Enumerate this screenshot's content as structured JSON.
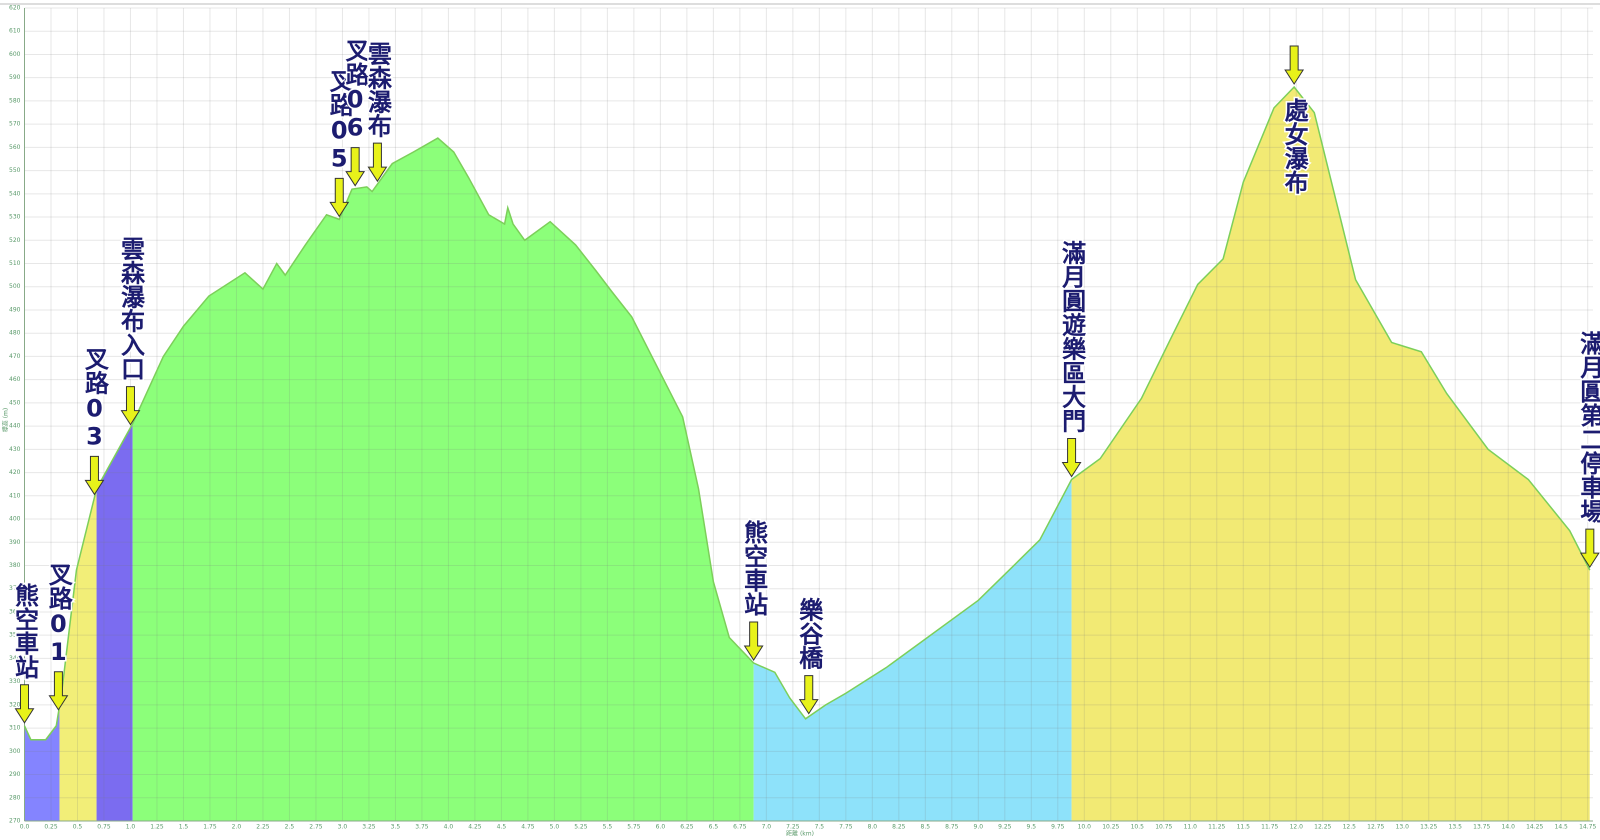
{
  "chart_data": {
    "type": "area",
    "xlabel": "距離 (km)",
    "ylabel": "標高 (m)",
    "x": [
      0,
      0.06,
      0.2,
      0.3,
      0.35,
      0.49,
      0.68,
      1.02,
      1.31,
      1.5,
      1.74,
      2.08,
      2.25,
      2.38,
      2.46,
      2.65,
      2.85,
      2.97,
      3.09,
      3.23,
      3.28,
      3.47,
      3.67,
      3.9,
      4.05,
      4.19,
      4.38,
      4.53,
      4.56,
      4.61,
      4.72,
      4.96,
      5.2,
      5.39,
      5.54,
      5.73,
      6.02,
      6.21,
      6.36,
      6.5,
      6.65,
      6.88,
      7.08,
      7.22,
      7.37,
      7.56,
      7.75,
      8.13,
      8.52,
      9.0,
      9.38,
      9.58,
      9.88,
      10.15,
      10.54,
      10.83,
      11.07,
      11.31,
      11.5,
      11.79,
      11.98,
      12.17,
      12.56,
      12.9,
      13.18,
      13.42,
      13.81,
      14.19,
      14.58,
      14.77
    ],
    "values": [
      311,
      305,
      305,
      311,
      325,
      378,
      413,
      441,
      470,
      483,
      496,
      506,
      499,
      510,
      505,
      518,
      531,
      529,
      542,
      543,
      541,
      553,
      558,
      564,
      558,
      547,
      531,
      527,
      534,
      527,
      520,
      528,
      518,
      507,
      498,
      487,
      461,
      444,
      413,
      373,
      349,
      338,
      334,
      323,
      314,
      320,
      325,
      336,
      349,
      365,
      382,
      391,
      417,
      426,
      452,
      479,
      501,
      512,
      545,
      577,
      586,
      575,
      503,
      476,
      472,
      454,
      430,
      417,
      395,
      378
    ],
    "color": "#7ccf5a",
    "segments": [
      {
        "start": 0,
        "end": 0.33,
        "color": "#8484ff"
      },
      {
        "start": 0.33,
        "end": 0.68,
        "color": "#f2ee78"
      },
      {
        "start": 0.68,
        "end": 1.02,
        "color": "#7b6cf0"
      },
      {
        "start": 1.02,
        "end": 6.88,
        "color": "#8cff7a"
      },
      {
        "start": 6.88,
        "end": 9.88,
        "color": "#8ee2fa"
      },
      {
        "start": 9.88,
        "end": 14.77,
        "color": "#f2ea74"
      }
    ],
    "annotations": [
      {
        "text": "熊空車站",
        "x": 0
      },
      {
        "text": "叉路01",
        "x": 0.32
      },
      {
        "text": "叉路03",
        "x": 0.66
      },
      {
        "text": "雲森瀑布入口",
        "x": 1.0
      },
      {
        "text": "叉路05",
        "x": 2.97
      },
      {
        "text": "叉路06",
        "x": 3.12
      },
      {
        "text": "雲森瀑布",
        "x": 3.33
      },
      {
        "text": "熊空車站",
        "x": 6.88
      },
      {
        "text": "樂谷橋",
        "x": 7.4
      },
      {
        "text": "滿月圓遊樂區大門",
        "x": 9.88
      },
      {
        "text": "處女瀑布",
        "x": 11.98
      },
      {
        "text": "滿月圓第二停車場",
        "x": 14.77
      }
    ],
    "xlim": [
      0,
      14.8
    ],
    "ylim": [
      270,
      620
    ],
    "grid": true,
    "xticks": [
      {
        "value": 0,
        "label": "0.0"
      },
      0.25,
      0.5,
      0.75,
      {
        "value": 1,
        "label": "1.0"
      },
      1.25,
      1.5,
      1.75,
      {
        "value": 2,
        "label": "2.0"
      },
      2.25,
      2.5,
      2.75,
      {
        "value": 3,
        "label": "3.0"
      },
      3.25,
      3.5,
      3.75,
      {
        "value": 4,
        "label": "4.0"
      },
      4.25,
      4.5,
      4.75,
      {
        "value": 5,
        "label": "5.0"
      },
      5.25,
      5.5,
      5.75,
      {
        "value": 6,
        "label": "6.0"
      },
      6.25,
      6.5,
      6.75,
      {
        "value": 7,
        "label": "7.0"
      },
      7.25,
      7.5,
      7.75,
      {
        "value": 8,
        "label": "8.0"
      },
      8.25,
      8.5,
      8.75,
      {
        "value": 9,
        "label": "9.0"
      },
      9.25,
      9.5,
      9.75,
      {
        "value": 10,
        "label": "10.0"
      },
      10.25,
      10.5,
      10.75,
      {
        "value": 11,
        "label": "11.0"
      },
      11.25,
      11.5,
      11.75,
      {
        "value": 12,
        "label": "12.0"
      },
      12.25,
      12.5,
      12.75,
      {
        "value": 13,
        "label": "13.0"
      },
      13.25,
      13.5,
      13.75,
      {
        "value": 14,
        "label": "14.0"
      },
      14.25,
      14.5,
      14.75
    ],
    "yticks": [
      270,
      280,
      290,
      300,
      310,
      320,
      330,
      340,
      350,
      360,
      370,
      380,
      390,
      400,
      410,
      420,
      430,
      440,
      450,
      460,
      470,
      480,
      490,
      500,
      510,
      520,
      530,
      540,
      550,
      560,
      570,
      580,
      590,
      600,
      610,
      620
    ]
  }
}
